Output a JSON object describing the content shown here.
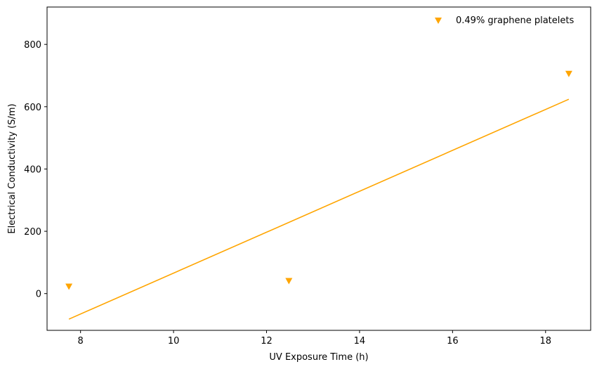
{
  "chart_data": {
    "type": "scatter",
    "xlabel": "UV Exposure Time (h)",
    "ylabel": "Electrical Conductivity (S/m)",
    "xlim": [
      7.28,
      18.97
    ],
    "ylim": [
      -118,
      920
    ],
    "xticks": [
      8,
      10,
      12,
      14,
      16,
      18
    ],
    "yticks": [
      0,
      200,
      400,
      600,
      800
    ],
    "grid": false,
    "legend_position": "top-right",
    "series": [
      {
        "name": "0.49% graphene platelets",
        "color": "#FFA500",
        "marker": "triangle-down",
        "points": [
          {
            "x": 7.75,
            "y": 22
          },
          {
            "x": 12.48,
            "y": 40
          },
          {
            "x": 18.5,
            "y": 705
          }
        ]
      }
    ],
    "fit_line": {
      "color": "#FFA500",
      "points": [
        {
          "x": 7.75,
          "y": -82
        },
        {
          "x": 18.5,
          "y": 624
        }
      ]
    }
  }
}
